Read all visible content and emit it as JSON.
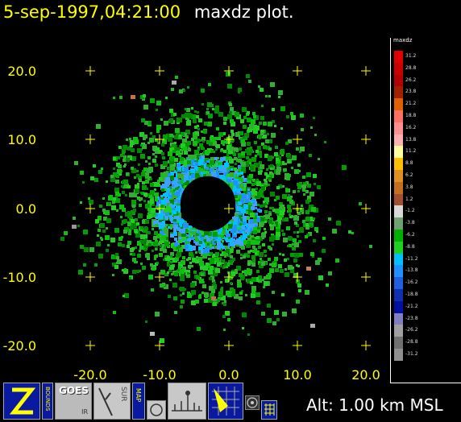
{
  "header": {
    "date_text": "5-sep-1997,04:21:00",
    "plot_name": "maxdz plot."
  },
  "footer": {
    "altitude_text": "Alt: 1.00 km MSL"
  },
  "map": {
    "x_ticks": [
      "-20.0",
      "-10.0",
      "0.0",
      "10.0",
      "20.0"
    ],
    "y_ticks": [
      "20.0",
      "10.0",
      "0.0",
      "-10.0",
      "-20.0"
    ],
    "axis_range_km": [
      -25,
      25
    ],
    "echo_inner_radius_km": 4,
    "echo_outer_radius_km": 20,
    "label_color": "#ffff00"
  },
  "color_scale": {
    "title": "maxdz",
    "levels": [
      {
        "label": "31.2",
        "color": "#e00000"
      },
      {
        "label": "28.8",
        "color": "#c80000"
      },
      {
        "label": "26.2",
        "color": "#b40000"
      },
      {
        "label": "23.8",
        "color": "#a02000"
      },
      {
        "label": "21.2",
        "color": "#e06000"
      },
      {
        "label": "18.8",
        "color": "#ff7060"
      },
      {
        "label": "16.2",
        "color": "#ff9090"
      },
      {
        "label": "13.8",
        "color": "#ffb0b0"
      },
      {
        "label": "11.2",
        "color": "#ffffa0"
      },
      {
        "label": "8.8",
        "color": "#ffc000"
      },
      {
        "label": "6.2",
        "color": "#e09020"
      },
      {
        "label": "3.8",
        "color": "#c07020"
      },
      {
        "label": "1.2",
        "color": "#a05030"
      },
      {
        "label": "-1.2",
        "color": "#d8d8d8"
      },
      {
        "label": "-3.8",
        "color": "#70a070"
      },
      {
        "label": "-6.2",
        "color": "#00b000"
      },
      {
        "label": "-8.8",
        "color": "#20d020"
      },
      {
        "label": "-11.2",
        "color": "#00c0ff"
      },
      {
        "label": "-13.8",
        "color": "#2090ff"
      },
      {
        "label": "-16.2",
        "color": "#2060e0"
      },
      {
        "label": "-18.8",
        "color": "#1030b0"
      },
      {
        "label": "-21.2",
        "color": "#0010a0"
      },
      {
        "label": "-23.8",
        "color": "#8080c0"
      },
      {
        "label": "-26.2",
        "color": "#a0a0a0"
      },
      {
        "label": "-28.8",
        "color": "#707070"
      },
      {
        "label": "-31.2",
        "color": "#909090"
      }
    ]
  },
  "toolbar": {
    "goes_label": "GOES",
    "goes_sub": "IR",
    "sur_label": "SUR",
    "map_label": "MAP",
    "bounds_label": "BOUNDS"
  },
  "icons": [
    "z-logo-icon",
    "bounds-icon",
    "goes-ir-icon",
    "sur-icon",
    "map-icon",
    "circle-icon",
    "station-icon",
    "radar-sweep-icon",
    "wheel-icon",
    "grid-icon"
  ]
}
